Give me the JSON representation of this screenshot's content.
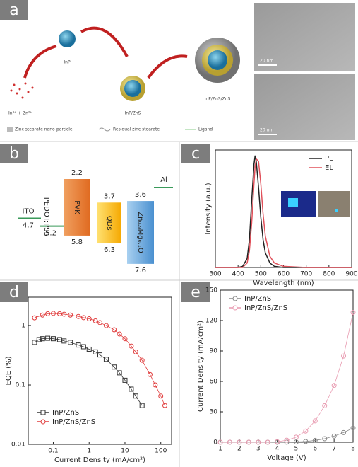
{
  "panel_labels": [
    "a",
    "b",
    "c",
    "d",
    "e"
  ],
  "panel_a": {
    "precursors": "In³⁺ + Zn²⁺",
    "core": "InP",
    "shell1": "InP/ZnS",
    "shell2": "InP/ZnS/ZnS",
    "scale_bars": [
      "20 nm",
      "20 nm"
    ],
    "legend": [
      "Zinc stearate nano-particle",
      "Residual zinc stearate",
      "Ligand"
    ]
  },
  "panel_b": {
    "layers": [
      {
        "label": "ITO",
        "level": 4.7
      },
      {
        "label": "PEDOT:PSS",
        "level": 5.2
      },
      {
        "label": "PVK",
        "lumo": 2.2,
        "homo": 5.8
      },
      {
        "label": "QDs",
        "lumo": 3.7,
        "homo": 6.3
      },
      {
        "label": "Zn₀.₉Mg₀.₁O",
        "lumo": 3.6,
        "homo": 7.6
      },
      {
        "label": "Al"
      }
    ]
  },
  "chart_data": [
    {
      "type": "line",
      "xlabel": "Wavelength (nm)",
      "ylabel": "Intensity (a.u.)",
      "x": [
        300,
        400,
        420,
        440,
        450,
        460,
        470,
        475,
        480,
        490,
        500,
        510,
        520,
        540,
        560,
        600,
        700,
        800,
        900
      ],
      "xlim": [
        300,
        900
      ],
      "xticks": [
        300,
        400,
        500,
        600,
        700,
        800,
        900
      ],
      "ylim": [
        0,
        1.05
      ],
      "legend": "upper right",
      "series": [
        {
          "name": "PL",
          "color": "#222222",
          "values": [
            0,
            0,
            0.01,
            0.08,
            0.25,
            0.6,
            0.92,
            1.0,
            0.95,
            0.72,
            0.45,
            0.25,
            0.13,
            0.04,
            0.01,
            0,
            0,
            0,
            0
          ]
        },
        {
          "name": "EL",
          "color": "#e0505a",
          "values": [
            0,
            0,
            0,
            0.04,
            0.15,
            0.4,
            0.75,
            0.9,
            0.97,
            0.95,
            0.75,
            0.48,
            0.28,
            0.1,
            0.04,
            0.01,
            0,
            0,
            0
          ]
        }
      ]
    },
    {
      "type": "line",
      "xlabel": "Current Density (mA/cm²)",
      "ylabel": "EQE (%)",
      "xscale": "log",
      "yscale": "log",
      "xlim": [
        0.02,
        200
      ],
      "xticks": [
        0.1,
        1,
        10,
        100
      ],
      "ylim": [
        0.01,
        3
      ],
      "yticks": [
        0.01,
        0.1,
        1
      ],
      "legend": "lower left",
      "series": [
        {
          "name": "InP/ZnS",
          "color": "#333333",
          "marker": "square",
          "x": [
            0.03,
            0.04,
            0.05,
            0.07,
            0.1,
            0.15,
            0.2,
            0.3,
            0.5,
            0.7,
            1,
            1.5,
            2,
            3,
            5,
            7,
            10,
            15,
            20,
            30
          ],
          "values": [
            0.52,
            0.58,
            0.6,
            0.61,
            0.6,
            0.58,
            0.55,
            0.52,
            0.47,
            0.44,
            0.4,
            0.36,
            0.32,
            0.27,
            0.2,
            0.16,
            0.12,
            0.085,
            0.065,
            0.045
          ]
        },
        {
          "name": "InP/ZnS/ZnS",
          "color": "#e03c3c",
          "marker": "circle",
          "x": [
            0.03,
            0.05,
            0.07,
            0.1,
            0.15,
            0.2,
            0.3,
            0.5,
            0.7,
            1,
            1.5,
            2,
            3,
            5,
            7,
            10,
            15,
            20,
            30,
            50,
            70,
            100,
            130
          ],
          "values": [
            1.35,
            1.5,
            1.58,
            1.6,
            1.58,
            1.55,
            1.5,
            1.42,
            1.36,
            1.3,
            1.2,
            1.12,
            1.0,
            0.85,
            0.72,
            0.6,
            0.45,
            0.36,
            0.26,
            0.15,
            0.1,
            0.065,
            0.045
          ]
        }
      ]
    },
    {
      "type": "line",
      "xlabel": "Voltage (V)",
      "ylabel": "Current Density (mA/cm²)",
      "x": [
        1,
        1.5,
        2,
        2.5,
        3,
        3.5,
        4,
        4.5,
        5,
        5.5,
        6,
        6.5,
        7,
        7.5,
        8
      ],
      "xlim": [
        1,
        8
      ],
      "xticks": [
        1,
        2,
        3,
        4,
        5,
        6,
        7,
        8
      ],
      "ylim": [
        0,
        150
      ],
      "yticks": [
        0,
        30,
        60,
        90,
        120,
        150
      ],
      "legend": "upper left",
      "series": [
        {
          "name": "InP/ZnS",
          "color": "#888888",
          "marker": "circle",
          "values": [
            0,
            0,
            0,
            0,
            0,
            0,
            0,
            0.1,
            0.3,
            0.8,
            1.8,
            3.5,
            6,
            9.5,
            14
          ]
        },
        {
          "name": "InP/ZnS/ZnS",
          "color": "#e89ab0",
          "marker": "circle",
          "values": [
            0,
            0,
            0,
            0,
            0,
            0,
            0.5,
            2,
            5,
            11,
            21,
            36,
            56,
            85,
            128
          ]
        }
      ]
    }
  ]
}
